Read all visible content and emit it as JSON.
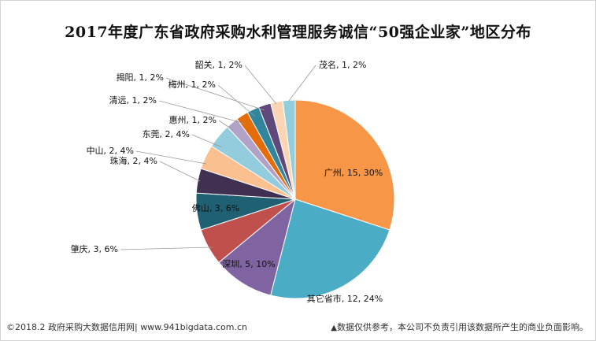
{
  "title": "2017年度广东省政府采购水利管理服务诚信“50强企业家”地区分布",
  "footer": {
    "source": "©2018.2 政府采购大数据信用网| www.941bigdata.com.cn",
    "disclaimer_mark": "▲",
    "disclaimer": "数据仅供参考，本公司不负责引用该数据所产生的商业负面影响。"
  },
  "chart_data": {
    "type": "pie",
    "title": "2017年度广东省政府采购水利管理服务诚信“50强企业家”地区分布",
    "total": 50,
    "slices": [
      {
        "name": "广州",
        "value": 15,
        "percent": "30%",
        "color": "#F79646"
      },
      {
        "name": "其它省市",
        "value": 12,
        "percent": "24%",
        "color": "#4BACC6"
      },
      {
        "name": "深圳",
        "value": 5,
        "percent": "10%",
        "color": "#8064A2"
      },
      {
        "name": "肇庆",
        "value": 3,
        "percent": "6%",
        "color": "#C0504D"
      },
      {
        "name": "佛山",
        "value": 3,
        "percent": "6%",
        "color": "#1F6173"
      },
      {
        "name": "珠海",
        "value": 2,
        "percent": "4%",
        "color": "#403152"
      },
      {
        "name": "中山",
        "value": 2,
        "percent": "4%",
        "color": "#FAC090"
      },
      {
        "name": "东莞",
        "value": 2,
        "percent": "4%",
        "color": "#93CDDD"
      },
      {
        "name": "惠州",
        "value": 1,
        "percent": "2%",
        "color": "#B3A2C7"
      },
      {
        "name": "清远",
        "value": 1,
        "percent": "2%",
        "color": "#E46C0A"
      },
      {
        "name": "梅州",
        "value": 1,
        "percent": "2%",
        "color": "#31859C"
      },
      {
        "name": "揭阳",
        "value": 1,
        "percent": "2%",
        "color": "#5F497A"
      },
      {
        "name": "韶关",
        "value": 1,
        "percent": "2%",
        "color": "#FCD5B5"
      },
      {
        "name": "茂名",
        "value": 1,
        "percent": "2%",
        "color": "#92CDDC"
      }
    ]
  }
}
